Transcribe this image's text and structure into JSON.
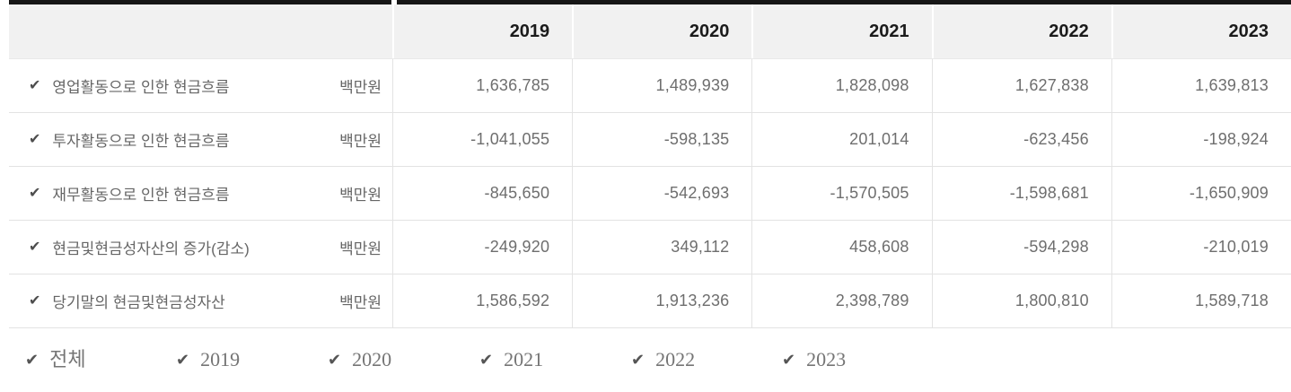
{
  "icons": {
    "check": "✔"
  },
  "colors": {
    "top_border": "#161616",
    "header_bg": "#f1f1f1",
    "header_text": "#1b1b1b",
    "body_text": "#666666",
    "number_text": "#6e6e6e",
    "checkmark": "#4d4d4d",
    "separator": "#e3e3e3",
    "filter_text": "#757575"
  },
  "table": {
    "years": [
      "2019",
      "2020",
      "2021",
      "2022",
      "2023"
    ],
    "rows": [
      {
        "label": "영업활동으로 인한 현금흐름",
        "unit": "백만원",
        "values": [
          "1,636,785",
          "1,489,939",
          "1,828,098",
          "1,627,838",
          "1,639,813"
        ]
      },
      {
        "label": "투자활동으로 인한 현금흐름",
        "unit": "백만원",
        "values": [
          "-1,041,055",
          "-598,135",
          "201,014",
          "-623,456",
          "-198,924"
        ]
      },
      {
        "label": "재무활동으로 인한 현금흐름",
        "unit": "백만원",
        "values": [
          "-845,650",
          "-542,693",
          "-1,570,505",
          "-1,598,681",
          "-1,650,909"
        ]
      },
      {
        "label": "현금및현금성자산의 증가(감소)",
        "unit": "백만원",
        "values": [
          "-249,920",
          "349,112",
          "458,608",
          "-594,298",
          "-210,019"
        ]
      },
      {
        "label": "당기말의 현금및현금성자산",
        "unit": "백만원",
        "values": [
          "1,586,592",
          "1,913,236",
          "2,398,789",
          "1,800,810",
          "1,589,718"
        ]
      }
    ]
  },
  "filters": [
    {
      "label": "전체"
    },
    {
      "label": "2019"
    },
    {
      "label": "2020"
    },
    {
      "label": "2021"
    },
    {
      "label": "2022"
    },
    {
      "label": "2023"
    }
  ]
}
